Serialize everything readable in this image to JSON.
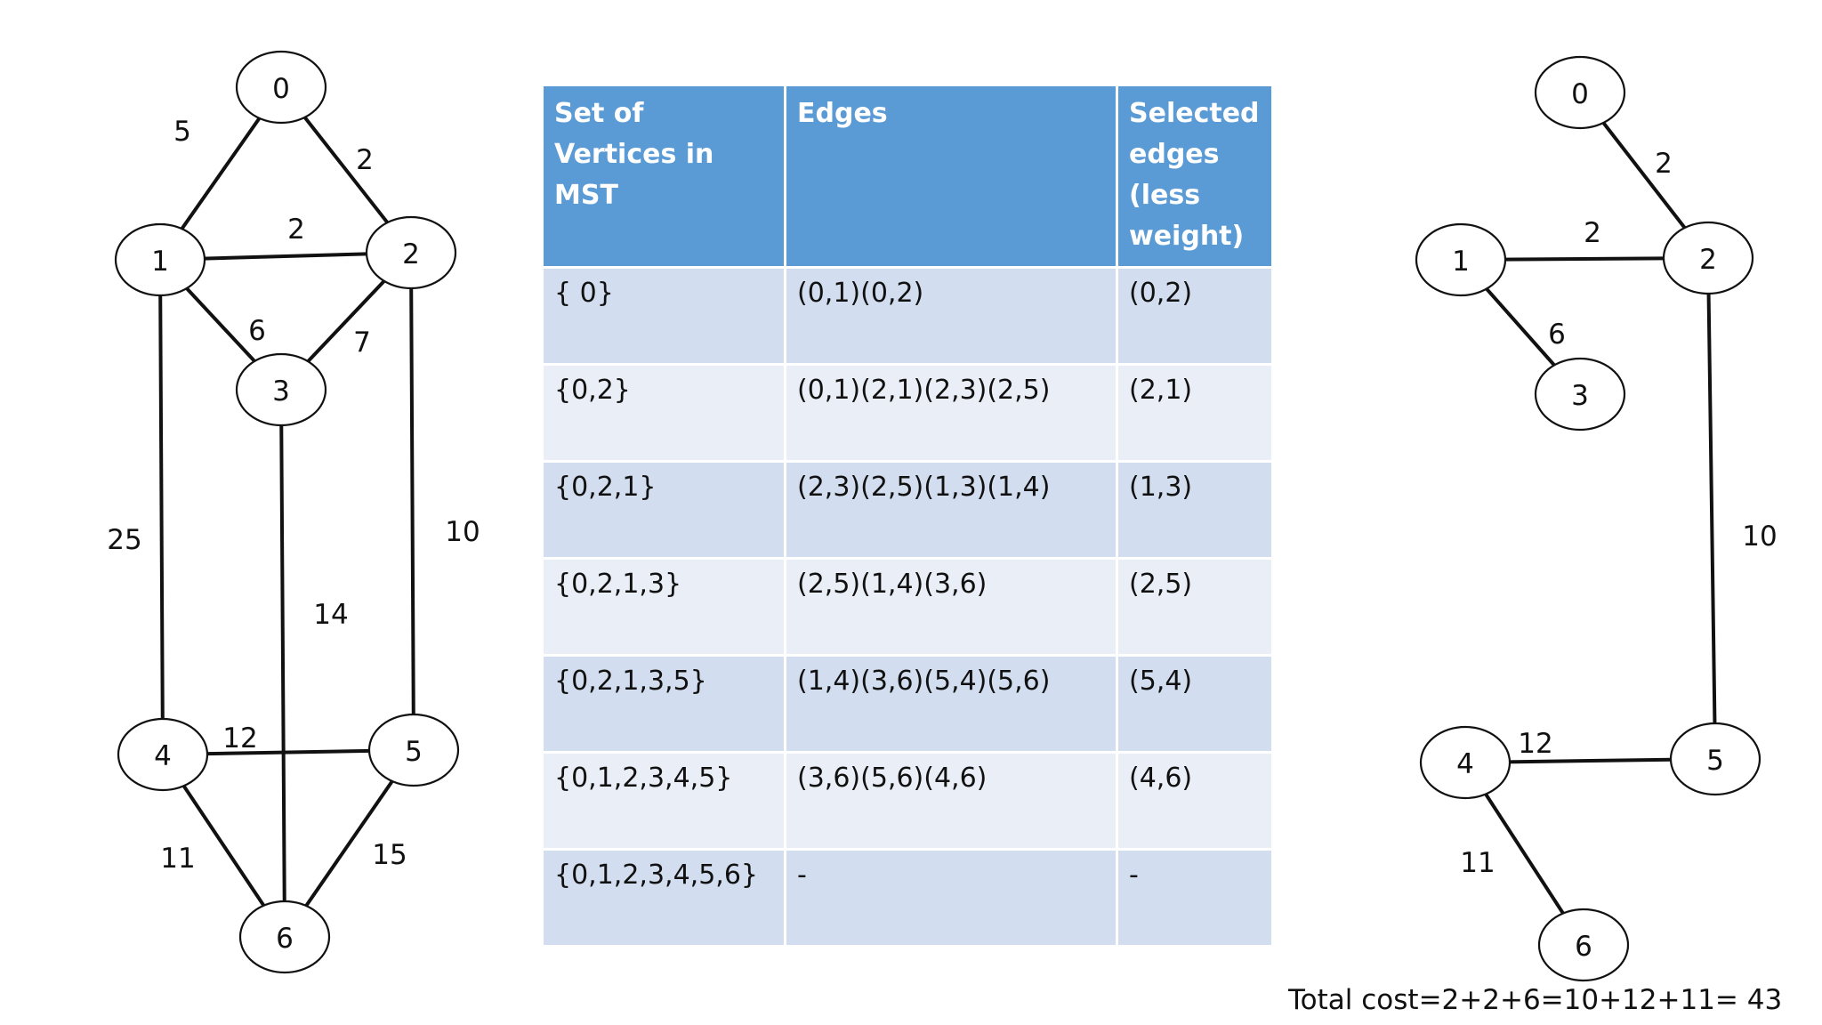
{
  "left_graph": {
    "nodes": [
      {
        "id": "0",
        "label": "0"
      },
      {
        "id": "1",
        "label": "1"
      },
      {
        "id": "2",
        "label": "2"
      },
      {
        "id": "3",
        "label": "3"
      },
      {
        "id": "4",
        "label": "4"
      },
      {
        "id": "5",
        "label": "5"
      },
      {
        "id": "6",
        "label": "6"
      }
    ],
    "edges": [
      {
        "from": "0",
        "to": "1",
        "weight": "5"
      },
      {
        "from": "0",
        "to": "2",
        "weight": "2"
      },
      {
        "from": "1",
        "to": "2",
        "weight": "2"
      },
      {
        "from": "1",
        "to": "3",
        "weight": "6"
      },
      {
        "from": "2",
        "to": "3",
        "weight": "7"
      },
      {
        "from": "1",
        "to": "4",
        "weight": "25"
      },
      {
        "from": "2",
        "to": "5",
        "weight": "10"
      },
      {
        "from": "3",
        "to": "6",
        "weight": "14"
      },
      {
        "from": "4",
        "to": "5",
        "weight": "12"
      },
      {
        "from": "4",
        "to": "6",
        "weight": "11"
      },
      {
        "from": "5",
        "to": "6",
        "weight": "15"
      }
    ]
  },
  "table": {
    "headers": [
      "Set of Vertices in MST",
      "Edges",
      "Selected edges (less weight)"
    ],
    "rows": [
      {
        "set": "{ 0}",
        "edges": "(0,1)(0,2)",
        "selected": "(0,2)"
      },
      {
        "set": "{0,2}",
        "edges": "(0,1)(2,1)(2,3)(2,5)",
        "selected": "(2,1)"
      },
      {
        "set": "{0,2,1}",
        "edges": "(2,3)(2,5)(1,3)(1,4)",
        "selected": "(1,3)"
      },
      {
        "set": "{0,2,1,3}",
        "edges": "(2,5)(1,4)(3,6)",
        "selected": "(2,5)"
      },
      {
        "set": "{0,2,1,3,5}",
        "edges": "(1,4)(3,6)(5,4)(5,6)",
        "selected": "(5,4)"
      },
      {
        "set": "{0,1,2,3,4,5}",
        "edges": "(3,6)(5,6)(4,6)",
        "selected": "(4,6)"
      },
      {
        "set": "{0,1,2,3,4,5,6}",
        "edges": "-",
        "selected": "-"
      }
    ]
  },
  "right_graph": {
    "nodes": [
      {
        "id": "0",
        "label": "0"
      },
      {
        "id": "1",
        "label": "1"
      },
      {
        "id": "2",
        "label": "2"
      },
      {
        "id": "3",
        "label": "3"
      },
      {
        "id": "4",
        "label": "4"
      },
      {
        "id": "5",
        "label": "5"
      },
      {
        "id": "6",
        "label": "6"
      }
    ],
    "edges": [
      {
        "from": "0",
        "to": "2",
        "weight": "2"
      },
      {
        "from": "1",
        "to": "2",
        "weight": "2"
      },
      {
        "from": "1",
        "to": "3",
        "weight": "6"
      },
      {
        "from": "2",
        "to": "5",
        "weight": "10"
      },
      {
        "from": "4",
        "to": "5",
        "weight": "12"
      },
      {
        "from": "4",
        "to": "6",
        "weight": "11"
      }
    ]
  },
  "total_cost": "Total cost=2+2+6=10+12+11= 43"
}
